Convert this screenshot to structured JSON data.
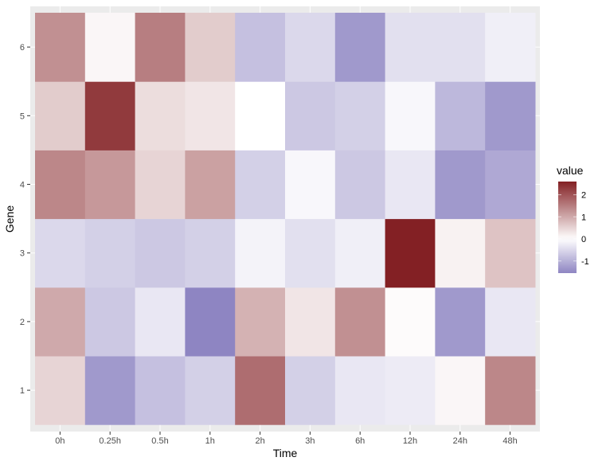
{
  "chart_data": {
    "type": "heatmap",
    "xlabel": "Time",
    "ylabel": "Gene",
    "x_categories": [
      "0h",
      "0.25h",
      "0.5h",
      "1h",
      "2h",
      "3h",
      "6h",
      "12h",
      "24h",
      "48h"
    ],
    "y_categories": [
      "1",
      "2",
      "3",
      "4",
      "5",
      "6"
    ],
    "values": {
      "1": [
        0.5,
        -1.3,
        -0.8,
        -0.6,
        1.7,
        -0.6,
        -0.3,
        -0.25,
        0.1,
        1.4
      ],
      "2": [
        1.0,
        -0.7,
        -0.3,
        -1.55,
        0.9,
        0.3,
        1.3,
        0.05,
        -1.3,
        -0.3
      ],
      "3": [
        -0.5,
        -0.6,
        -0.7,
        -0.6,
        -0.15,
        -0.4,
        -0.2,
        2.6,
        0.15,
        0.7
      ],
      "4": [
        1.4,
        1.2,
        0.5,
        1.1,
        -0.6,
        -0.1,
        -0.7,
        -0.3,
        -1.3,
        -1.1
      ],
      "5": [
        0.6,
        2.3,
        0.4,
        0.3,
        0.0,
        -0.7,
        -0.6,
        -0.1,
        -0.9,
        -1.3
      ],
      "6": [
        1.3,
        0.1,
        1.5,
        0.6,
        -0.8,
        -0.5,
        -1.3,
        -0.4,
        -0.4,
        -0.2
      ]
    },
    "legend": {
      "title": "value",
      "ticks": [
        "2",
        "1",
        "0",
        "-1"
      ],
      "tick_values": [
        2,
        1,
        0,
        -1
      ],
      "range": [
        -1.55,
        2.6
      ],
      "placement": "right"
    },
    "colors": {
      "low": "#8e85c2",
      "mid": "#ffffff",
      "high": "#832024"
    }
  }
}
